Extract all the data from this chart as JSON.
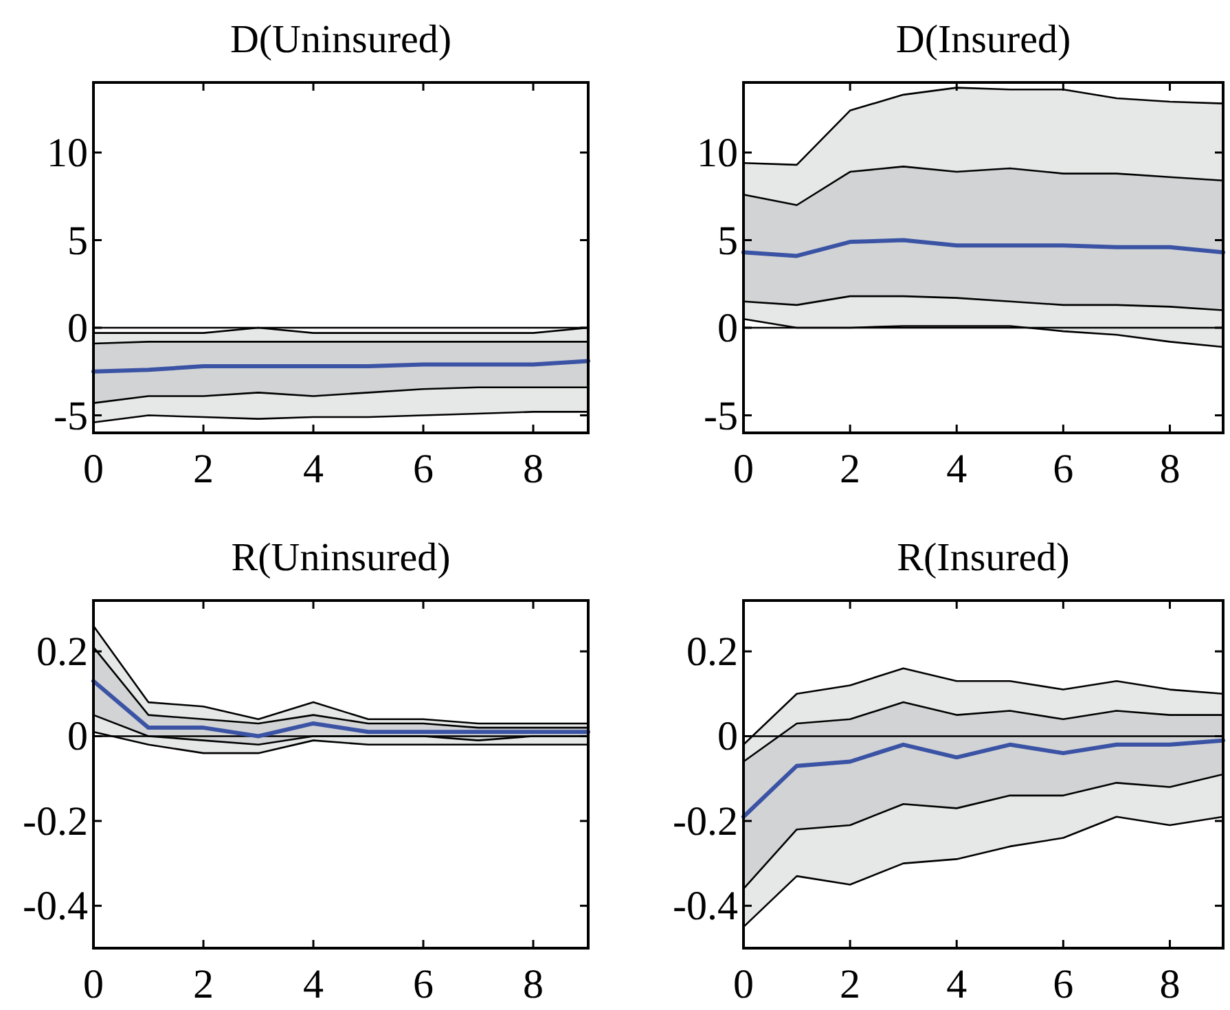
{
  "chart_data": [
    {
      "type": "line",
      "title": "D(Uninsured)",
      "x": [
        0,
        1,
        2,
        3,
        4,
        5,
        6,
        7,
        8,
        9
      ],
      "xlim": [
        0,
        9
      ],
      "xticks": [
        0,
        2,
        4,
        6,
        8
      ],
      "ylim": [
        -6,
        14
      ],
      "yticks": [
        -5,
        0,
        5,
        10
      ],
      "ref_lines": [
        {
          "axis": "y",
          "value": 0,
          "color": "#000000"
        }
      ],
      "series": [
        {
          "color": "#e6e7e7",
          "values": [
            null,
            null,
            null,
            null,
            null,
            null,
            null,
            null,
            null,
            null
          ],
          "lower": [
            -5.4,
            -5.0,
            -5.1,
            -5.2,
            -5.1,
            -5.1,
            -5.0,
            -4.9,
            -4.8,
            -4.8
          ],
          "upper": [
            -0.3,
            -0.3,
            -0.3,
            0,
            -0.3,
            -0.3,
            -0.3,
            -0.3,
            -0.3,
            0
          ]
        },
        {
          "color": "#d2d3d5",
          "values": [
            null,
            null,
            null,
            null,
            null,
            null,
            null,
            null,
            null,
            null
          ],
          "lower": [
            -4.3,
            -3.9,
            -3.9,
            -3.7,
            -3.9,
            -3.7,
            -3.5,
            -3.4,
            -3.4,
            -3.4
          ],
          "upper": [
            -0.9,
            -0.8,
            -0.8,
            -0.8,
            -0.8,
            -0.8,
            -0.8,
            -0.8,
            -0.8,
            -0.8
          ]
        },
        {
          "color": "#000000",
          "values": [
            -5.4,
            -5.0,
            -5.1,
            -5.2,
            -5.1,
            -5.1,
            -5.0,
            -4.9,
            -4.8,
            -4.8
          ]
        },
        {
          "color": "#000000",
          "values": [
            -4.3,
            -3.9,
            -3.9,
            -3.7,
            -3.9,
            -3.7,
            -3.5,
            -3.4,
            -3.4,
            -3.4
          ]
        },
        {
          "color": "#000000",
          "values": [
            -0.9,
            -0.8,
            -0.8,
            -0.8,
            -0.8,
            -0.8,
            -0.8,
            -0.8,
            -0.8,
            -0.8
          ]
        },
        {
          "color": "#000000",
          "values": [
            -0.3,
            -0.3,
            -0.3,
            0,
            -0.3,
            -0.3,
            -0.3,
            -0.3,
            -0.3,
            0
          ]
        },
        {
          "color": "#3a53a4",
          "values": [
            -2.5,
            -2.4,
            -2.2,
            -2.2,
            -2.2,
            -2.2,
            -2.1,
            -2.1,
            -2.1,
            -1.9
          ]
        }
      ]
    },
    {
      "type": "line",
      "title": "D(Insured)",
      "x": [
        0,
        1,
        2,
        3,
        4,
        5,
        6,
        7,
        8,
        9
      ],
      "xlim": [
        0,
        9
      ],
      "xticks": [
        0,
        2,
        4,
        6,
        8
      ],
      "ylim": [
        -6,
        14
      ],
      "yticks": [
        -5,
        0,
        5,
        10
      ],
      "ref_lines": [
        {
          "axis": "y",
          "value": 0,
          "color": "#000000"
        }
      ],
      "series": [
        {
          "color": "#e6e7e7",
          "values": [
            null,
            null,
            null,
            null,
            null,
            null,
            null,
            null,
            null,
            null
          ],
          "lower": [
            0.5,
            0,
            0,
            0.1,
            0.1,
            0.1,
            -0.2,
            -0.4,
            -0.8,
            -1.1
          ],
          "upper": [
            9.4,
            9.3,
            12.4,
            13.3,
            13.7,
            13.6,
            13.6,
            13.1,
            12.9,
            12.8
          ]
        },
        {
          "color": "#d2d3d5",
          "values": [
            null,
            null,
            null,
            null,
            null,
            null,
            null,
            null,
            null,
            null
          ],
          "lower": [
            1.5,
            1.3,
            1.8,
            1.8,
            1.7,
            1.5,
            1.3,
            1.3,
            1.2,
            1.0
          ],
          "upper": [
            7.6,
            7.0,
            8.9,
            9.2,
            8.9,
            9.1,
            8.8,
            8.8,
            8.6,
            8.4
          ]
        },
        {
          "color": "#000000",
          "values": [
            0.5,
            0,
            0,
            0.1,
            0.1,
            0.1,
            -0.2,
            -0.4,
            -0.8,
            -1.1
          ]
        },
        {
          "color": "#000000",
          "values": [
            1.5,
            1.3,
            1.8,
            1.8,
            1.7,
            1.5,
            1.3,
            1.3,
            1.2,
            1.0
          ]
        },
        {
          "color": "#000000",
          "values": [
            7.6,
            7.0,
            8.9,
            9.2,
            8.9,
            9.1,
            8.8,
            8.8,
            8.6,
            8.4
          ]
        },
        {
          "color": "#000000",
          "values": [
            9.4,
            9.3,
            12.4,
            13.3,
            13.7,
            13.6,
            13.6,
            13.1,
            12.9,
            12.8
          ]
        },
        {
          "color": "#3a53a4",
          "values": [
            4.3,
            4.1,
            4.9,
            5.0,
            4.7,
            4.7,
            4.7,
            4.6,
            4.6,
            4.3
          ]
        }
      ]
    },
    {
      "type": "line",
      "title": "R(Uninsured)",
      "x": [
        0,
        1,
        2,
        3,
        4,
        5,
        6,
        7,
        8,
        9
      ],
      "xlim": [
        0,
        9
      ],
      "xticks": [
        0,
        2,
        4,
        6,
        8
      ],
      "ylim": [
        -0.5,
        0.32
      ],
      "yticks": [
        -0.4,
        -0.2,
        0,
        0.2
      ],
      "ref_lines": [
        {
          "axis": "y",
          "value": 0,
          "color": "#000000"
        }
      ],
      "series": [
        {
          "color": "#e6e7e7",
          "values": [
            null,
            null,
            null,
            null,
            null,
            null,
            null,
            null,
            null,
            null
          ],
          "lower": [
            0.01,
            -0.02,
            -0.04,
            -0.04,
            -0.01,
            -0.02,
            -0.02,
            -0.02,
            -0.02,
            -0.02
          ],
          "upper": [
            0.26,
            0.08,
            0.07,
            0.04,
            0.08,
            0.04,
            0.04,
            0.03,
            0.03,
            0.03
          ]
        },
        {
          "color": "#d2d3d5",
          "values": [
            null,
            null,
            null,
            null,
            null,
            null,
            null,
            null,
            null,
            null
          ],
          "lower": [
            0.05,
            0,
            -0.01,
            -0.02,
            0,
            0,
            0,
            -0.01,
            0,
            0
          ],
          "upper": [
            0.21,
            0.05,
            0.04,
            0.03,
            0.05,
            0.03,
            0.03,
            0.02,
            0.02,
            0.02
          ]
        },
        {
          "color": "#000000",
          "values": [
            0.01,
            -0.02,
            -0.04,
            -0.04,
            -0.01,
            -0.02,
            -0.02,
            -0.02,
            -0.02,
            -0.02
          ]
        },
        {
          "color": "#000000",
          "values": [
            0.05,
            0,
            -0.01,
            -0.02,
            0,
            0,
            0,
            -0.01,
            0,
            0
          ]
        },
        {
          "color": "#000000",
          "values": [
            0.21,
            0.05,
            0.04,
            0.03,
            0.05,
            0.03,
            0.03,
            0.02,
            0.02,
            0.02
          ]
        },
        {
          "color": "#000000",
          "values": [
            0.26,
            0.08,
            0.07,
            0.04,
            0.08,
            0.04,
            0.04,
            0.03,
            0.03,
            0.03
          ]
        },
        {
          "color": "#3a53a4",
          "values": [
            0.13,
            0.02,
            0.02,
            0,
            0.03,
            0.01,
            0.01,
            0.01,
            0.01,
            0.01
          ]
        }
      ]
    },
    {
      "type": "line",
      "title": "R(Insured)",
      "x": [
        0,
        1,
        2,
        3,
        4,
        5,
        6,
        7,
        8,
        9
      ],
      "xlim": [
        0,
        9
      ],
      "xticks": [
        0,
        2,
        4,
        6,
        8
      ],
      "ylim": [
        -0.5,
        0.32
      ],
      "yticks": [
        -0.4,
        -0.2,
        0,
        0.2
      ],
      "ref_lines": [
        {
          "axis": "y",
          "value": 0,
          "color": "#000000"
        }
      ],
      "series": [
        {
          "color": "#e6e7e7",
          "values": [
            null,
            null,
            null,
            null,
            null,
            null,
            null,
            null,
            null,
            null
          ],
          "lower": [
            -0.45,
            -0.33,
            -0.35,
            -0.3,
            -0.29,
            -0.26,
            -0.24,
            -0.19,
            -0.21,
            -0.19
          ],
          "upper": [
            -0.02,
            0.1,
            0.12,
            0.16,
            0.13,
            0.13,
            0.11,
            0.13,
            0.11,
            0.1
          ]
        },
        {
          "color": "#d2d3d5",
          "values": [
            null,
            null,
            null,
            null,
            null,
            null,
            null,
            null,
            null,
            null
          ],
          "lower": [
            -0.36,
            -0.22,
            -0.21,
            -0.16,
            -0.17,
            -0.14,
            -0.14,
            -0.11,
            -0.12,
            -0.09
          ],
          "upper": [
            -0.06,
            0.03,
            0.04,
            0.08,
            0.05,
            0.06,
            0.04,
            0.06,
            0.05,
            0.05
          ]
        },
        {
          "color": "#000000",
          "values": [
            -0.45,
            -0.33,
            -0.35,
            -0.3,
            -0.29,
            -0.26,
            -0.24,
            -0.19,
            -0.21,
            -0.19
          ]
        },
        {
          "color": "#000000",
          "values": [
            -0.36,
            -0.22,
            -0.21,
            -0.16,
            -0.17,
            -0.14,
            -0.14,
            -0.11,
            -0.12,
            -0.09
          ]
        },
        {
          "color": "#000000",
          "values": [
            -0.06,
            0.03,
            0.04,
            0.08,
            0.05,
            0.06,
            0.04,
            0.06,
            0.05,
            0.05
          ]
        },
        {
          "color": "#000000",
          "values": [
            -0.02,
            0.1,
            0.12,
            0.16,
            0.13,
            0.13,
            0.11,
            0.13,
            0.11,
            0.1
          ]
        },
        {
          "color": "#3a53a4",
          "values": [
            -0.19,
            -0.07,
            -0.06,
            -0.02,
            -0.05,
            -0.02,
            -0.04,
            -0.02,
            -0.02,
            -0.01
          ]
        }
      ]
    }
  ]
}
